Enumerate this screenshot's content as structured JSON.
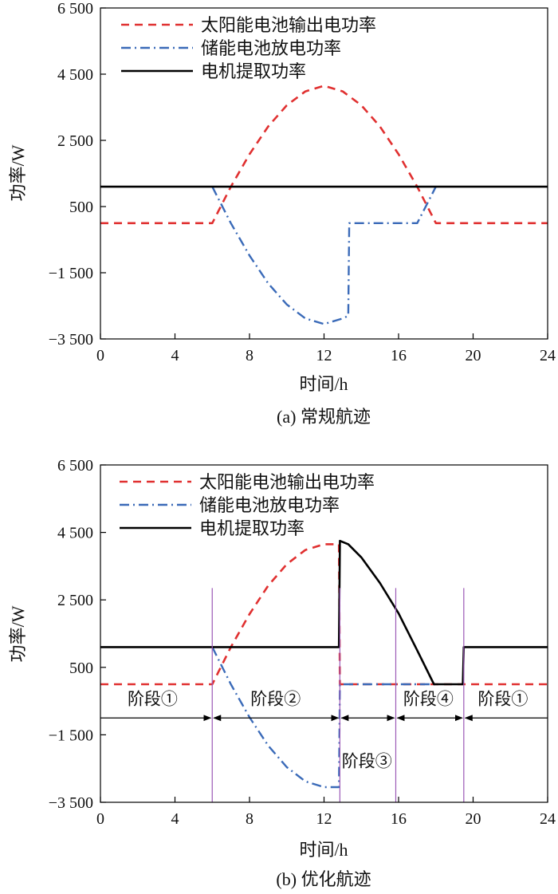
{
  "chart_data": [
    {
      "type": "line",
      "caption": "(a) 常规航迹",
      "xlabel": "时间/h",
      "ylabel": "功率/W",
      "xlim": [
        0,
        24
      ],
      "ylim": [
        -3500,
        6500
      ],
      "xticks": [
        0,
        4,
        8,
        12,
        16,
        20,
        24
      ],
      "xtick_labels": [
        "0",
        "4",
        "8",
        "12",
        "16",
        "20",
        "24"
      ],
      "yticks": [
        -3500,
        -1500,
        500,
        2500,
        4500,
        6500
      ],
      "ytick_labels": [
        "−3 500",
        "−1 500",
        "500",
        "2 500",
        "4 500",
        "6 500"
      ],
      "legend_position": "top-left",
      "series": [
        {
          "name": "太阳能电池输出电功率",
          "color": "#e03030",
          "style": "dashed",
          "x": [
            0,
            6,
            7,
            8,
            9,
            10,
            11,
            12,
            13,
            14,
            15,
            16,
            17,
            18,
            24
          ],
          "y": [
            0,
            0,
            1100,
            2080,
            2920,
            3560,
            3980,
            4150,
            3980,
            3560,
            2920,
            2080,
            1100,
            0,
            0
          ]
        },
        {
          "name": "储能电池放电功率",
          "color": "#3a6ab8",
          "style": "dashdot",
          "x": [
            6,
            7,
            8,
            9,
            10,
            11,
            12,
            13,
            13.3,
            13.35,
            14,
            15,
            16,
            17,
            18
          ],
          "y": [
            1100,
            0,
            -980,
            -1820,
            -2460,
            -2880,
            -3050,
            -2880,
            -2800,
            0,
            0,
            0,
            0,
            0,
            1100
          ]
        },
        {
          "name": "电机提取功率",
          "color": "#000000",
          "style": "solid",
          "x": [
            0,
            24
          ],
          "y": [
            1100,
            1100
          ]
        }
      ]
    },
    {
      "type": "line",
      "caption": "(b) 优化航迹",
      "xlabel": "时间/h",
      "ylabel": "功率/W",
      "xlim": [
        0,
        24
      ],
      "ylim": [
        -3500,
        6500
      ],
      "xticks": [
        0,
        4,
        8,
        12,
        16,
        20,
        24
      ],
      "xtick_labels": [
        "0",
        "4",
        "8",
        "12",
        "16",
        "20",
        "24"
      ],
      "yticks": [
        -3500,
        -1500,
        500,
        2500,
        4500,
        6500
      ],
      "ytick_labels": [
        "−3 500",
        "−1 500",
        "500",
        "2 500",
        "4 500",
        "6 500"
      ],
      "legend_position": "top-left",
      "series": [
        {
          "name": "太阳能电池输出电功率",
          "color": "#e03030",
          "style": "dashed",
          "x": [
            0,
            6,
            7,
            8,
            9,
            10,
            11,
            12,
            12.8,
            12.85,
            17.9,
            19.45,
            19.5,
            24
          ],
          "y": [
            0,
            0,
            1100,
            2080,
            2920,
            3560,
            3980,
            4150,
            4150,
            0,
            0,
            0,
            0,
            0
          ]
        },
        {
          "name": "储能电池放电功率",
          "color": "#3a6ab8",
          "style": "dashdot",
          "x": [
            6,
            7,
            8,
            9,
            10,
            11,
            12,
            12.8,
            12.85,
            18
          ],
          "y": [
            1100,
            0,
            -980,
            -1820,
            -2460,
            -2880,
            -3050,
            -3050,
            0,
            0
          ]
        },
        {
          "name": "电机提取功率",
          "color": "#000000",
          "style": "solid",
          "x": [
            0,
            12.8,
            12.85,
            13.3,
            14,
            15,
            16,
            17,
            17.9,
            19.45,
            19.5,
            24
          ],
          "y": [
            1100,
            1100,
            4250,
            4150,
            3760,
            3000,
            2100,
            1000,
            0,
            0,
            1100,
            1100
          ]
        }
      ],
      "stage_boundaries": [
        6,
        12.85,
        15.85,
        19.5
      ],
      "stage_arrow_y": -1000,
      "stages": [
        {
          "label": "阶段①",
          "x": 2.8,
          "y": -600
        },
        {
          "label": "阶段②",
          "x": 9.4,
          "y": -600
        },
        {
          "label": "阶段③",
          "x": 14.3,
          "y": -2450
        },
        {
          "label": "阶段④",
          "x": 17.6,
          "y": -600
        },
        {
          "label": "阶段①",
          "x": 21.6,
          "y": -600
        }
      ]
    }
  ]
}
